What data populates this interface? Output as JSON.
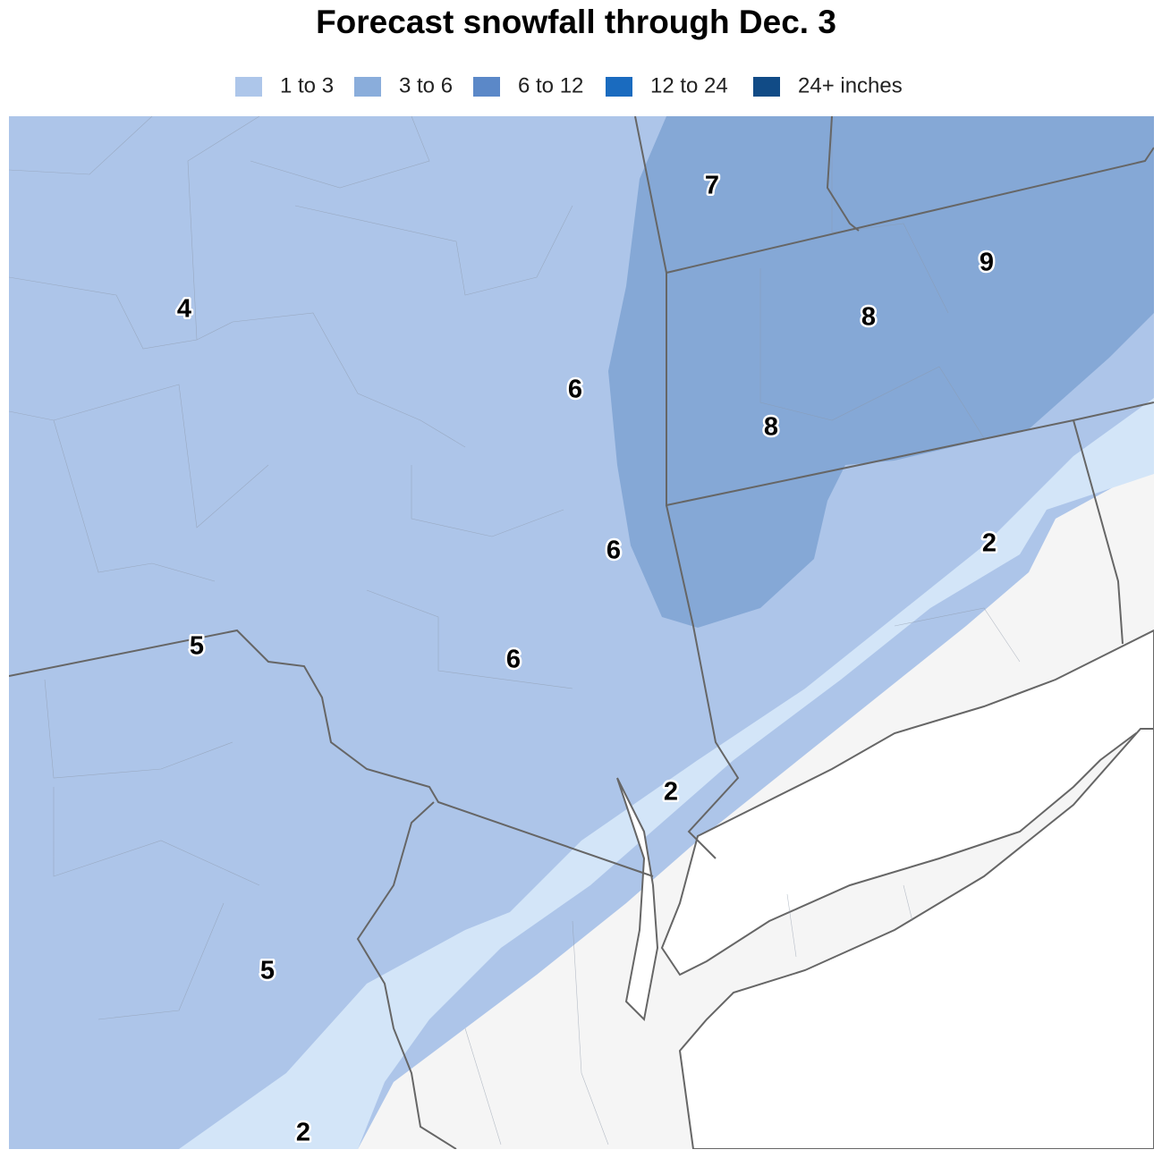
{
  "title": "Forecast snowfall through Dec. 3",
  "legend": [
    {
      "label": "1 to 3",
      "color": "#adc6ea"
    },
    {
      "label": "3 to 6",
      "color": "#8aaddb"
    },
    {
      "label": "6 to 12",
      "color": "#5b88c8"
    },
    {
      "label": "12 to 24",
      "color": "#1a6bbf"
    },
    {
      "label": "24+ inches",
      "color": "#114b86"
    }
  ],
  "map_labels": [
    7,
    9,
    8,
    4,
    6,
    8,
    6,
    2,
    5,
    6,
    2,
    5,
    2
  ]
}
